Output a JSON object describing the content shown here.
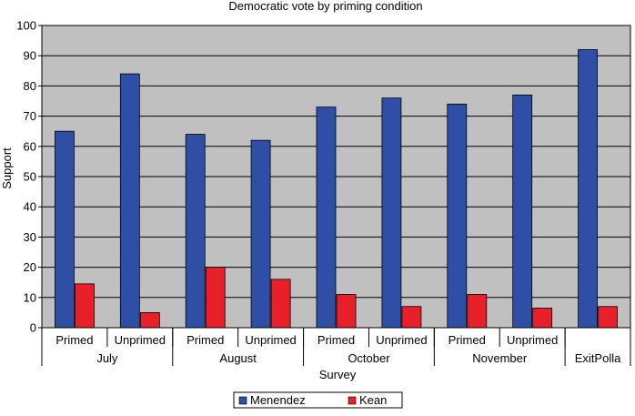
{
  "chart_data": {
    "type": "bar",
    "title": "Democratic vote by priming condition",
    "xlabel": "Survey",
    "ylabel": "Support",
    "ylim": [
      0,
      100
    ],
    "yticks": [
      0,
      10,
      20,
      30,
      40,
      50,
      60,
      70,
      80,
      90,
      100
    ],
    "grid": true,
    "legend_position": "bottom-center",
    "categories": [
      "Primed",
      "Unprimed",
      "Primed",
      "Unprimed",
      "Primed",
      "Unprimed",
      "Primed",
      "Unprimed",
      ""
    ],
    "groups": [
      {
        "label": "July",
        "count": 2
      },
      {
        "label": "August",
        "count": 2
      },
      {
        "label": "October",
        "count": 2
      },
      {
        "label": "November",
        "count": 2
      },
      {
        "label": "ExitPolla",
        "count": 1
      }
    ],
    "series": [
      {
        "name": "Menendez",
        "color": "#2f4ea6",
        "values": [
          65,
          84,
          64,
          62,
          73,
          76,
          74,
          77,
          92
        ]
      },
      {
        "name": "Kean",
        "color": "#e8202a",
        "values": [
          14.5,
          5,
          20,
          16,
          11,
          7,
          11,
          6.5,
          7
        ]
      }
    ]
  }
}
